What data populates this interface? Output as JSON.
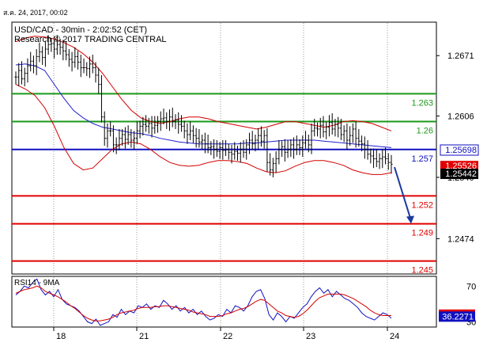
{
  "header": {
    "datestamp": "ส.ค. 24, 2017, 00:02",
    "instrument": "USD/CAD - 30min - 2:02:52 (CET)",
    "research": "Research © 2017 TRADING CENTRAL"
  },
  "colors": {
    "price": "#000000",
    "bollinger": "#d40000",
    "moving_average": "#2020d0",
    "resistance": "#1a9a1a",
    "pivot": "#1010c0",
    "support": "#e00000",
    "forecast_arrow": "#1a3aa0",
    "rsi_line": "#1010c0",
    "rsi_ma": "#d40000",
    "frame": "#000000",
    "separator": "#999999"
  },
  "chart_data": [
    {
      "type": "line",
      "subtype": "bar-ohlc with bollinger bands and moving average",
      "title": "USD/CAD - 30min - 2:02:52 (CET)",
      "x_tick_labels": [
        "18",
        "21",
        "22",
        "23",
        "24"
      ],
      "y_tick_labels": [
        "1.2671",
        "1.2606",
        "1.2540",
        "1.2474"
      ],
      "y_ticks": [
        1.2671,
        1.2606,
        1.254,
        1.2474
      ],
      "ylim": [
        1.2436,
        1.2707
      ],
      "series": [
        {
          "values": [
            1.2648,
            1.2655,
            1.2646,
            1.2652,
            1.266,
            1.2665,
            1.266,
            1.267,
            1.2675,
            1.2669,
            1.2678,
            1.2683,
            1.2684,
            1.2678,
            1.2683,
            1.268,
            1.2676,
            1.2672,
            1.2667,
            1.2664,
            1.267,
            1.2664,
            1.2658,
            1.2658,
            1.2657,
            1.2662,
            1.2658,
            1.265,
            1.264,
            1.2605,
            1.2582,
            1.259,
            1.259,
            1.2575,
            1.2575,
            1.2582,
            1.2586,
            1.2581,
            1.2586,
            1.258,
            1.2582,
            1.259,
            1.2595,
            1.2597,
            1.2595,
            1.2598,
            1.2593,
            1.2596,
            1.26,
            1.2603,
            1.2604,
            1.26,
            1.2605,
            1.26,
            1.2602,
            1.2597,
            1.2595,
            1.259,
            1.2586,
            1.259,
            1.2585,
            1.2582,
            1.2578,
            1.258,
            1.2576,
            1.2572,
            1.2573,
            1.257,
            1.2568,
            1.2572,
            1.2569,
            1.257,
            1.2567,
            1.2565,
            1.2568,
            1.2566,
            1.257,
            1.2567,
            1.2575,
            1.258,
            1.2576,
            1.258,
            1.2585,
            1.2579,
            1.2585,
            1.2556,
            1.2548,
            1.2555,
            1.256,
            1.257,
            1.2573,
            1.2567,
            1.257,
            1.2575,
            1.257,
            1.2575,
            1.2572,
            1.2577,
            1.258,
            1.2575,
            1.259,
            1.2593,
            1.2592,
            1.2596,
            1.2589,
            1.2594,
            1.2599,
            1.2592,
            1.2597,
            1.2593,
            1.2586,
            1.259,
            1.258,
            1.2585,
            1.2592,
            1.2582,
            1.2579,
            1.2576,
            1.257,
            1.2565,
            1.2563,
            1.256,
            1.2557,
            1.256,
            1.2562,
            1.256,
            1.2556,
            1.2554
          ],
          "name": ""
        },
        {
          "name": "",
          "values": [
            1.2686,
            1.269,
            1.2692,
            1.2691,
            1.2689,
            1.2685,
            1.268,
            1.2673,
            1.2664,
            1.2652,
            1.2638,
            1.2624,
            1.2612,
            1.2604,
            1.26,
            1.2598,
            1.26,
            1.2603,
            1.2605,
            1.2605,
            1.2603,
            1.26,
            1.2598,
            1.2596,
            1.2594,
            1.2592,
            1.2594,
            1.2597,
            1.26,
            1.26,
            1.2598,
            1.2596,
            1.2594,
            1.2596,
            1.26,
            1.2601,
            1.26,
            1.2598,
            1.2594,
            1.259
          ]
        },
        {
          "name": "",
          "values": [
            1.264,
            1.2635,
            1.2628,
            1.2615,
            1.2595,
            1.2572,
            1.2555,
            1.2548,
            1.255,
            1.256,
            1.257,
            1.2576,
            1.2578,
            1.2576,
            1.257,
            1.2562,
            1.2556,
            1.2553,
            1.2552,
            1.2553,
            1.2556,
            1.2558,
            1.2558,
            1.2557,
            1.2555,
            1.255,
            1.2546,
            1.2545,
            1.2547,
            1.2552,
            1.2556,
            1.2558,
            1.2558,
            1.2556,
            1.2553,
            1.2548,
            1.2545,
            1.2543,
            1.2543,
            1.2545
          ]
        },
        {
          "name": "",
          "values": [
            1.2661,
            1.2662,
            1.266,
            1.2655,
            1.264,
            1.2625,
            1.2612,
            1.2604,
            1.2598,
            1.2594,
            1.2592,
            1.259,
            1.2588,
            1.2587,
            1.2585,
            1.2582,
            1.258,
            1.2578,
            1.2577,
            1.2576,
            1.2576,
            1.2576,
            1.2576,
            1.2576,
            1.2577,
            1.2577,
            1.2578,
            1.2579,
            1.258,
            1.258,
            1.258,
            1.258,
            1.2579,
            1.2578,
            1.2577,
            1.2576,
            1.2575,
            1.2574,
            1.2573,
            1.2572
          ]
        }
      ],
      "levels": [
        {
          "label": "1.263",
          "value": 1.263,
          "role": "resistance"
        },
        {
          "label": "1.26",
          "value": 1.26,
          "role": "resistance"
        },
        {
          "label": "1.257",
          "value": 1.257,
          "role": "pivot"
        },
        {
          "label": "1.252",
          "value": 1.252,
          "role": "support"
        },
        {
          "label": "1.249",
          "value": 1.249,
          "role": "support"
        },
        {
          "label": "1.245",
          "value": 1.245,
          "role": "support"
        }
      ],
      "price_tags": [
        {
          "label": "1.25698",
          "value": 1.25698,
          "style": "blue"
        },
        {
          "label": "1.25526",
          "value": 1.25526,
          "style": "red"
        },
        {
          "label": "1.25442",
          "value": 1.25442,
          "style": "black"
        }
      ],
      "forecast": {
        "from": 1.2551,
        "to": 1.2491
      },
      "grid": true,
      "legend": "none"
    },
    {
      "type": "line",
      "title": "RSI14 - 9MA",
      "ylim": [
        25,
        80
      ],
      "y_tick_labels": [
        "70",
        "30"
      ],
      "y_ticks": [
        70,
        30
      ],
      "series": [
        {
          "name": "",
          "values": [
            60,
            64,
            70,
            68,
            74,
            78,
            66,
            60,
            64,
            58,
            66,
            55,
            50,
            48,
            46,
            42,
            36,
            30,
            28,
            33,
            26,
            28,
            30,
            38,
            35,
            44,
            38,
            42,
            40,
            48,
            46,
            50,
            44,
            48,
            46,
            54,
            50,
            44,
            48,
            42,
            46,
            40,
            44,
            38,
            42,
            36,
            32,
            34,
            38,
            36,
            44,
            40,
            48,
            46,
            42,
            48,
            58,
            64,
            66,
            56,
            38,
            32,
            40,
            36,
            30,
            36,
            34,
            40,
            46,
            50,
            58,
            64,
            68,
            62,
            66,
            58,
            64,
            60,
            56,
            54,
            50,
            46,
            40,
            36,
            34,
            32,
            36,
            40,
            38,
            34
          ]
        },
        {
          "name": "",
          "values": [
            62,
            64,
            66,
            67,
            68,
            70,
            68,
            64,
            62,
            60,
            58,
            55,
            52,
            48,
            45,
            41,
            37,
            34,
            32,
            31,
            31,
            32,
            33,
            35,
            38,
            40,
            41,
            42,
            43,
            45,
            46,
            46,
            46,
            47,
            47,
            48,
            48,
            47,
            46,
            45,
            44,
            43,
            41,
            40,
            39,
            38,
            36,
            36,
            36,
            37,
            39,
            40,
            42,
            44,
            45,
            47,
            50,
            53,
            55,
            54,
            50,
            46,
            42,
            40,
            37,
            36,
            35,
            36,
            39,
            43,
            48,
            53,
            57,
            59,
            61,
            61,
            61,
            61,
            60,
            58,
            56,
            53,
            50,
            47,
            43,
            40,
            38,
            37,
            37,
            37
          ]
        }
      ],
      "price_tags": [
        {
          "label": "38.4731",
          "value": 38.4731,
          "style": "red"
        },
        {
          "label": "36.2271",
          "value": 36.2271,
          "style": "blue"
        }
      ],
      "legend": "none"
    }
  ]
}
